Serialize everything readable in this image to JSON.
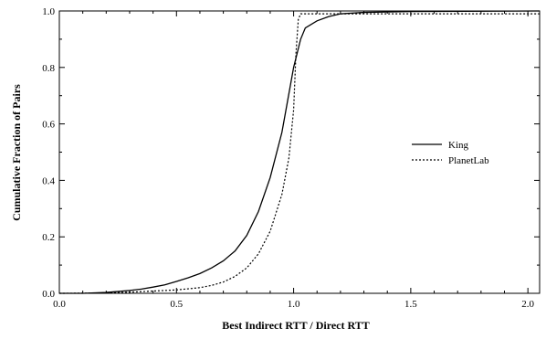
{
  "chart_data": {
    "type": "line",
    "title": "",
    "xlabel": "Best Indirect RTT / Direct RTT",
    "ylabel": "Cumulative Fraction of Pairs",
    "xlim": [
      0.0,
      2.05
    ],
    "ylim": [
      0.0,
      1.0
    ],
    "x_ticks": [
      "0.0",
      "0.5",
      "1.0",
      "1.5",
      "2.0"
    ],
    "x_tick_values": [
      0.0,
      0.5,
      1.0,
      1.5,
      2.0
    ],
    "y_ticks": [
      "0.0",
      "0.2",
      "0.4",
      "0.6",
      "0.8",
      "1.0"
    ],
    "y_tick_values": [
      0.0,
      0.2,
      0.4,
      0.6,
      0.8,
      1.0
    ],
    "grid": false,
    "legend_position": "right",
    "series": [
      {
        "name": "King",
        "style": "solid",
        "color": "#000000",
        "points": [
          [
            0.0,
            0.0
          ],
          [
            0.1,
            0.0
          ],
          [
            0.2,
            0.003
          ],
          [
            0.3,
            0.01
          ],
          [
            0.35,
            0.015
          ],
          [
            0.4,
            0.022
          ],
          [
            0.45,
            0.03
          ],
          [
            0.5,
            0.042
          ],
          [
            0.55,
            0.055
          ],
          [
            0.6,
            0.07
          ],
          [
            0.65,
            0.09
          ],
          [
            0.7,
            0.115
          ],
          [
            0.75,
            0.15
          ],
          [
            0.8,
            0.205
          ],
          [
            0.85,
            0.29
          ],
          [
            0.9,
            0.41
          ],
          [
            0.95,
            0.57
          ],
          [
            1.0,
            0.8
          ],
          [
            1.03,
            0.9
          ],
          [
            1.05,
            0.94
          ],
          [
            1.1,
            0.965
          ],
          [
            1.15,
            0.98
          ],
          [
            1.2,
            0.99
          ],
          [
            1.3,
            0.995
          ],
          [
            1.5,
            0.998
          ],
          [
            2.05,
            1.0
          ]
        ]
      },
      {
        "name": "PlanetLab",
        "style": "dotted",
        "color": "#000000",
        "points": [
          [
            0.0,
            0.0
          ],
          [
            0.2,
            0.001
          ],
          [
            0.3,
            0.004
          ],
          [
            0.4,
            0.008
          ],
          [
            0.5,
            0.012
          ],
          [
            0.6,
            0.02
          ],
          [
            0.65,
            0.028
          ],
          [
            0.7,
            0.04
          ],
          [
            0.75,
            0.06
          ],
          [
            0.8,
            0.09
          ],
          [
            0.85,
            0.14
          ],
          [
            0.9,
            0.22
          ],
          [
            0.95,
            0.35
          ],
          [
            0.98,
            0.48
          ],
          [
            1.0,
            0.65
          ],
          [
            1.01,
            0.85
          ],
          [
            1.02,
            0.97
          ],
          [
            1.03,
            0.99
          ],
          [
            1.1,
            0.99
          ],
          [
            2.05,
            0.99
          ]
        ]
      }
    ]
  }
}
